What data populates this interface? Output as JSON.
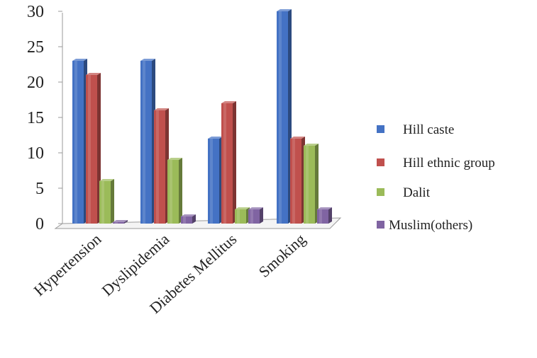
{
  "chart_data": {
    "type": "bar",
    "categories": [
      "Hypertension",
      "Dyslipidemia",
      "Diabetes Mellitus",
      "Smoking"
    ],
    "series": [
      {
        "name": "Hill caste",
        "color": "#4472C4",
        "values": [
          23,
          23,
          12,
          30
        ]
      },
      {
        "name": "Hill ethnic group",
        "color": "#C0504D",
        "values": [
          21,
          16,
          17,
          12
        ]
      },
      {
        "name": "Dalit",
        "color": "#9BBB59",
        "values": [
          6,
          9,
          2,
          11
        ]
      },
      {
        "name": "Muslim(others)",
        "color": "#8064A2",
        "values": [
          0,
          1,
          2,
          2
        ]
      }
    ],
    "yticks": [
      "0",
      "5",
      "10",
      "15",
      "20",
      "25",
      "30"
    ],
    "ylim": [
      0,
      30
    ],
    "grid": false,
    "legend_position": "right",
    "style": "3d-cylinder-bars"
  }
}
